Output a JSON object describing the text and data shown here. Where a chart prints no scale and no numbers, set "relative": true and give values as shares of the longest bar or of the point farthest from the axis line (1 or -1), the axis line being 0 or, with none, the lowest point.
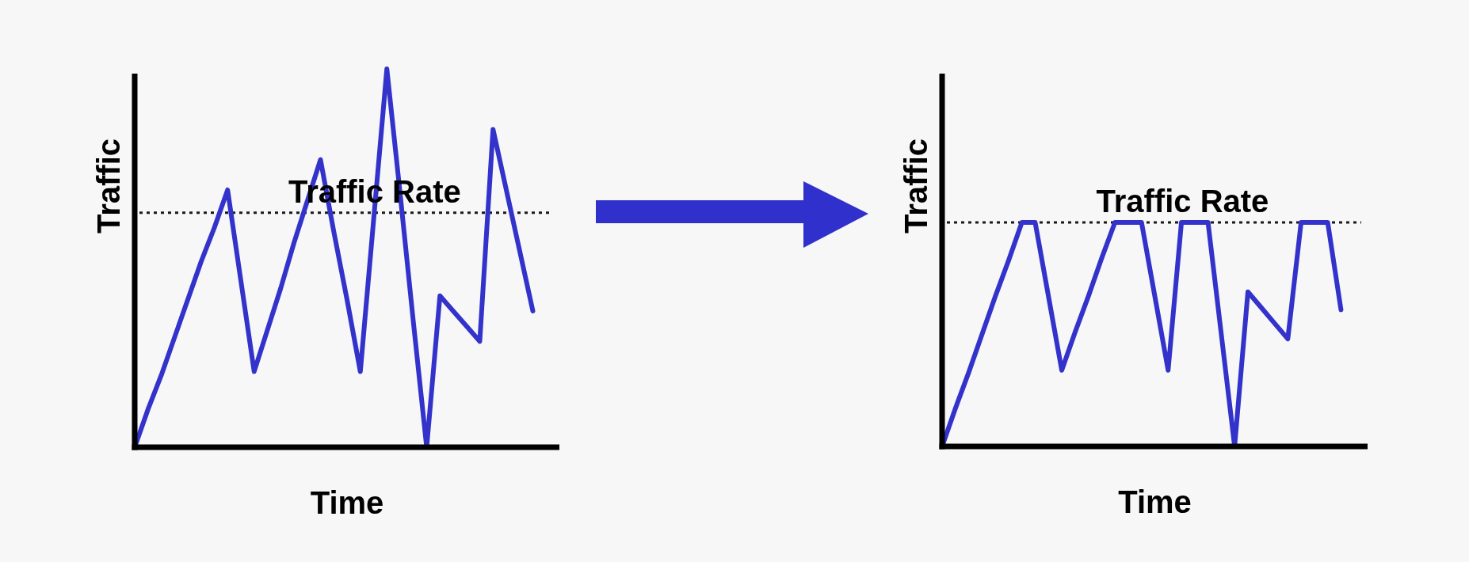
{
  "chart_data": [
    {
      "type": "line",
      "xlabel": "Time",
      "ylabel": "Traffic",
      "relative": true,
      "tick_labels": false,
      "categories": [
        null,
        null,
        null,
        null,
        null,
        null,
        null,
        null,
        null,
        null,
        null,
        null,
        null,
        null,
        null,
        null,
        null,
        null,
        null,
        null,
        null,
        null,
        null,
        null,
        null,
        null,
        null,
        null,
        null,
        null,
        null,
        null,
        null
      ],
      "series": [
        {
          "color": "#3333cc",
          "values": [
            0,
            0.1,
            0.19,
            0.29,
            0.39,
            0.49,
            0.58,
            0.68,
            0.44,
            0.2,
            0.31,
            0.42,
            0.54,
            0.65,
            0.76,
            0.57,
            0.39,
            0.2,
            0.6,
            1,
            0.67,
            0.33,
            0,
            0.4,
            0.36,
            0.32,
            0.28,
            0.84,
            0.68,
            0.52,
            0.36,
            null,
            null
          ]
        }
      ],
      "ref_lines": [
        {
          "axis": "y",
          "value": 0.62,
          "label": "Traffic Rate",
          "color": "#1a1a1a",
          "line_style": "dotted"
        }
      ]
    },
    {
      "type": "line",
      "xlabel": "Time",
      "ylabel": "Traffic",
      "relative": true,
      "tick_labels": false,
      "categories": [
        null,
        null,
        null,
        null,
        null,
        null,
        null,
        null,
        null,
        null,
        null,
        null,
        null,
        null,
        null,
        null,
        null,
        null,
        null,
        null,
        null,
        null,
        null,
        null,
        null,
        null,
        null,
        null,
        null,
        null,
        null,
        null,
        null
      ],
      "series": [
        {
          "color": "#3333cc",
          "values": [
            0,
            0.17,
            0.33,
            0.5,
            0.67,
            0.83,
            1,
            1,
            0.67,
            0.34,
            0.51,
            0.67,
            0.84,
            1,
            1,
            1,
            0.67,
            0.34,
            1,
            1,
            1,
            0.5,
            0,
            0.69,
            0.62,
            0.55,
            0.48,
            1,
            1,
            1,
            0.61,
            null,
            null
          ]
        }
      ],
      "ref_lines": [
        {
          "axis": "y",
          "value": 1,
          "label": "Traffic Rate",
          "color": "#1a1a1a",
          "line_style": "dotted"
        }
      ]
    }
  ]
}
